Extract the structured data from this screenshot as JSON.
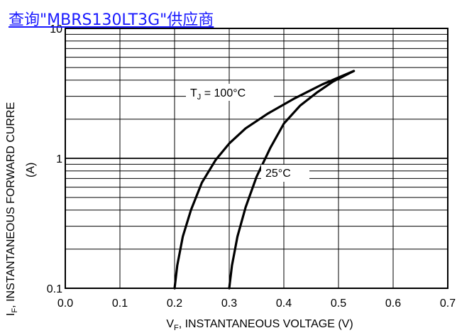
{
  "supplier_link": "查询\"MBRS130LT3G\"供应商",
  "chart_data": {
    "type": "line",
    "title": "",
    "xlabel": "V_F, INSTANTANEOUS VOLTAGE (V)",
    "xlabel_main": "V",
    "xlabel_sub": "F",
    "xlabel_rest": ", INSTANTANEOUS VOLTAGE (V)",
    "ylabel": "I_F, INSTANTANEOUS FORWARD CURRENT (A)",
    "ylabel_main": "I",
    "ylabel_sub": "F",
    "ylabel_rest": ", INSTANTANEOUS FORWARD CURRE",
    "ylabel_unit": "(A)",
    "x_ticks": [
      "0.0",
      "0.1",
      "0.2",
      "0.3",
      "0.4",
      "0.5",
      "0.6",
      "0.7"
    ],
    "y_ticks": [
      "0.1",
      "1",
      "10"
    ],
    "xlim": [
      0.0,
      0.7
    ],
    "ylim": [
      0.1,
      10
    ],
    "yscale": "log",
    "grid": true,
    "annotations": {
      "tj100_main": "T",
      "tj100_sub": "J",
      "tj100_rest": " = 100°C",
      "tj25": "25°C"
    },
    "series": [
      {
        "x": [
          0.2,
          0.205,
          0.215,
          0.23,
          0.25,
          0.275,
          0.3,
          0.33,
          0.37,
          0.42,
          0.47,
          0.528
        ],
        "y": [
          0.1,
          0.15,
          0.25,
          0.4,
          0.65,
          0.97,
          1.3,
          1.7,
          2.2,
          2.9,
          3.7,
          4.7
        ]
      },
      {
        "x": [
          0.3,
          0.305,
          0.315,
          0.33,
          0.35,
          0.375,
          0.4,
          0.43,
          0.46,
          0.49,
          0.51,
          0.528
        ],
        "y": [
          0.1,
          0.15,
          0.25,
          0.42,
          0.72,
          1.2,
          1.85,
          2.55,
          3.2,
          3.9,
          4.3,
          4.7
        ]
      }
    ]
  }
}
